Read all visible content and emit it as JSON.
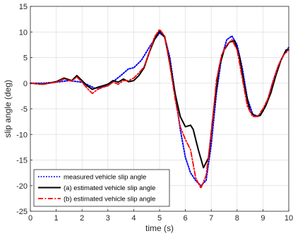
{
  "chart_data": {
    "type": "line",
    "title": "",
    "xlabel": "time (s)",
    "ylabel": "slip angle (deg)",
    "xlim": [
      0,
      10
    ],
    "ylim": [
      -25,
      15
    ],
    "xticks": [
      0,
      1,
      2,
      3,
      4,
      5,
      6,
      7,
      8,
      9,
      10
    ],
    "yticks": [
      -25,
      -20,
      -15,
      -10,
      -5,
      0,
      5,
      10,
      15
    ],
    "grid": true,
    "legend_position": "bottom-left",
    "series": [
      {
        "name": "measured vehicle slip angle",
        "color": "#0000ff",
        "style": "dotted",
        "x": [
          0,
          0.5,
          1.0,
          1.5,
          2.0,
          2.5,
          3.0,
          3.5,
          3.8,
          4.0,
          4.3,
          4.6,
          4.8,
          5.0,
          5.2,
          5.4,
          5.6,
          5.8,
          6.0,
          6.2,
          6.4,
          6.6,
          6.8,
          7.0,
          7.2,
          7.4,
          7.6,
          7.8,
          8.0,
          8.2,
          8.4,
          8.6,
          8.8,
          9.0,
          9.2,
          9.4,
          9.6,
          9.8,
          10.0
        ],
        "y": [
          0,
          0,
          0.2,
          0.5,
          0.2,
          -1.0,
          -0.5,
          1.5,
          2.8,
          3.0,
          4.5,
          7.0,
          8.5,
          9.8,
          9.0,
          5.0,
          -2.0,
          -9.0,
          -14.5,
          -17.5,
          -19.0,
          -20.0,
          -19.0,
          -12.0,
          -2.0,
          5.0,
          8.5,
          9.2,
          7.5,
          3.0,
          -3.0,
          -6.0,
          -6.5,
          -5.5,
          -3.0,
          0.5,
          3.5,
          5.5,
          7.0
        ]
      },
      {
        "name": "(a) estimated vehicle slip angle",
        "color": "#000000",
        "style": "solid",
        "x": [
          0,
          0.5,
          1.0,
          1.3,
          1.6,
          1.8,
          2.0,
          2.2,
          2.4,
          2.6,
          2.8,
          3.0,
          3.2,
          3.4,
          3.6,
          3.8,
          4.0,
          4.2,
          4.4,
          4.6,
          4.8,
          5.0,
          5.2,
          5.4,
          5.6,
          5.8,
          6.0,
          6.2,
          6.3,
          6.5,
          6.7,
          6.9,
          7.1,
          7.3,
          7.5,
          7.7,
          7.9,
          8.1,
          8.3,
          8.5,
          8.7,
          8.9,
          9.1,
          9.3,
          9.5,
          9.7,
          9.9,
          10.0
        ],
        "y": [
          0,
          -0.2,
          0.3,
          1.0,
          0.5,
          1.5,
          0.5,
          -0.5,
          -1.2,
          -0.8,
          -0.5,
          -0.2,
          0.5,
          0.2,
          0.8,
          0.3,
          0.5,
          1.5,
          3.0,
          6.0,
          8.5,
          10.2,
          9.0,
          4.0,
          -2.0,
          -6.5,
          -8.5,
          -8.2,
          -9.0,
          -13.0,
          -16.5,
          -14.5,
          -5.0,
          3.0,
          6.5,
          8.0,
          8.3,
          5.0,
          -1.0,
          -5.5,
          -6.5,
          -6.3,
          -4.5,
          -2.0,
          1.5,
          4.5,
          6.5,
          6.5
        ]
      },
      {
        "name": "(b) estimated vehicle slip angle",
        "color": "#ff0000",
        "style": "dashdot",
        "x": [
          0,
          0.5,
          1.0,
          1.3,
          1.6,
          1.8,
          2.0,
          2.2,
          2.4,
          2.6,
          2.8,
          3.0,
          3.2,
          3.4,
          3.6,
          3.8,
          4.0,
          4.2,
          4.4,
          4.6,
          4.8,
          5.0,
          5.2,
          5.4,
          5.6,
          5.8,
          6.0,
          6.2,
          6.4,
          6.6,
          6.8,
          7.0,
          7.2,
          7.4,
          7.6,
          7.8,
          8.0,
          8.2,
          8.4,
          8.6,
          8.8,
          9.0,
          9.2,
          9.4,
          9.6,
          9.8,
          10.0
        ],
        "y": [
          0,
          -0.2,
          0.2,
          0.8,
          0.4,
          1.2,
          0.2,
          -1.0,
          -2.0,
          -1.2,
          -0.8,
          -0.5,
          0.2,
          -0.2,
          0.5,
          0.5,
          1.0,
          2.0,
          3.2,
          6.0,
          9.0,
          10.5,
          9.2,
          3.5,
          -3.0,
          -8.5,
          -11.0,
          -13.0,
          -18.5,
          -20.5,
          -18.0,
          -10.0,
          0.5,
          5.5,
          7.5,
          8.5,
          6.5,
          1.0,
          -4.5,
          -6.5,
          -6.5,
          -5.0,
          -3.0,
          0.5,
          3.5,
          5.5,
          6.5
        ]
      }
    ]
  }
}
